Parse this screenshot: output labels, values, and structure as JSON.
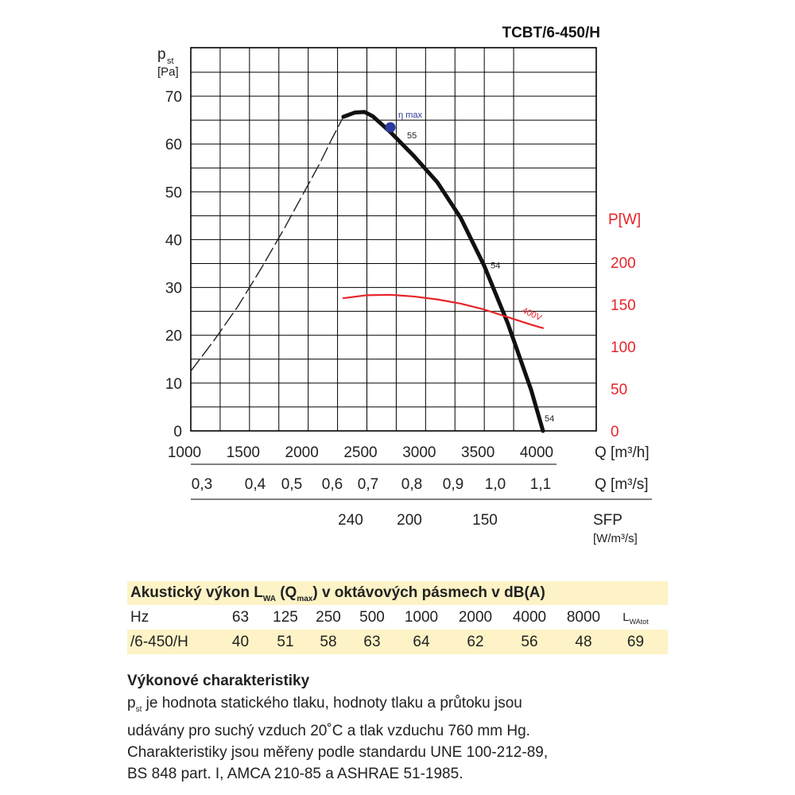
{
  "title": "TCBT/6-450/H",
  "chart_data": {
    "type": "line",
    "title": "TCBT/6-450/H",
    "x": {
      "label": "Q [m³/h]",
      "range": [
        1000,
        4000
      ],
      "ticks": [
        1000,
        1500,
        2000,
        2500,
        3000,
        3500,
        4000
      ]
    },
    "x2": {
      "label": "Q [m³/s]",
      "tick_labels": [
        "0,3",
        "0,4",
        "0,5",
        "0,6",
        "0,7",
        "0,8",
        "0,9",
        "1,0",
        "1,1"
      ],
      "tick_values": [
        0.3,
        0.4,
        0.5,
        0.6,
        0.7,
        0.8,
        0.9,
        1.0,
        1.1
      ]
    },
    "x3": {
      "label": "SFP",
      "unit": "[W/m³/s]",
      "tick_labels": [
        "240",
        "200",
        "150"
      ],
      "tick_positions_m3h": [
        2350,
        2850,
        3500
      ]
    },
    "y_left": {
      "label": "p",
      "label_sub": "st",
      "unit": "[Pa]",
      "range": [
        0,
        70
      ],
      "ticks": [
        0,
        10,
        20,
        30,
        40,
        50,
        60,
        70
      ]
    },
    "y_right": {
      "label": "P[W]",
      "range": [
        0,
        250
      ],
      "ticks": [
        0,
        50,
        100,
        150,
        200
      ]
    },
    "series": [
      {
        "name": "pressure (unstable zone)",
        "axis": "left",
        "style": "dashed",
        "color": "#222222",
        "x": [
          1000,
          1200,
          1400,
          1600,
          1800,
          2000,
          2100,
          2200,
          2300
        ],
        "y": [
          12.5,
          19,
          26,
          34,
          42.5,
          51.5,
          56,
          61,
          65.7
        ]
      },
      {
        "name": "pressure",
        "axis": "left",
        "style": "solid-thick",
        "color": "#111111",
        "x": [
          2300,
          2400,
          2480,
          2550,
          2700,
          2900,
          3100,
          3300,
          3500,
          3700,
          3900,
          4000
        ],
        "y": [
          65.7,
          66.6,
          66.7,
          65.8,
          62.5,
          57.5,
          52,
          44.5,
          34.5,
          22.5,
          8.5,
          0
        ]
      },
      {
        "name": "400V",
        "axis": "right",
        "style": "solid",
        "color": "#e8232a",
        "x": [
          2300,
          2500,
          2700,
          2900,
          3100,
          3300,
          3500,
          3700,
          3900,
          4000
        ],
        "y": [
          157.5,
          161,
          161.5,
          159.5,
          156,
          151,
          144,
          135,
          126,
          122
        ]
      }
    ],
    "annotations": [
      {
        "text": "η max",
        "x": 2700,
        "y": 63.5,
        "color": "#2b3a9c"
      },
      {
        "text": "55",
        "x": 2700,
        "y": 63.5,
        "color": "#222222"
      },
      {
        "text": "54",
        "x": 3500,
        "y": 35.5,
        "color": "#222222"
      },
      {
        "text": "54",
        "x": 4000,
        "y": 0,
        "color": "#222222"
      },
      {
        "text": "400V",
        "x": 3830,
        "y": 141,
        "color": "#e8232a"
      }
    ],
    "grid": true
  },
  "acoustic": {
    "heading_pre": "Akustický výkon L",
    "heading_sub1": "WA",
    "heading_mid": " (Q",
    "heading_sub2": "max",
    "heading_post": ") v oktávových pásmech v dB(A)",
    "header_label": "Hz",
    "bands": [
      "63",
      "125",
      "250",
      "500",
      "1000",
      "2000",
      "4000",
      "8000"
    ],
    "total_label_pre": "L",
    "total_label_sub": "WAtot",
    "row_label": "/6-450/H",
    "values": [
      "40",
      "51",
      "58",
      "63",
      "64",
      "62",
      "56",
      "48"
    ],
    "total_value": "69"
  },
  "performance": {
    "title": "Výkonové charakteristiky",
    "line1_sym": "p",
    "line1_sub": "st",
    "line1_text": " je hodnota statického tlaku, hodnoty tlaku a průtoku jsou",
    "line2": "udávány pro suchý vzduch 20˚C a tlak vzduchu 760 mm Hg.",
    "line3": "Charakteristiky jsou měřeny podle standardu UNE 100-212-89,",
    "line4": "BS 848 part. I, AMCA 210-85 a ASHRAE 51-1985."
  }
}
